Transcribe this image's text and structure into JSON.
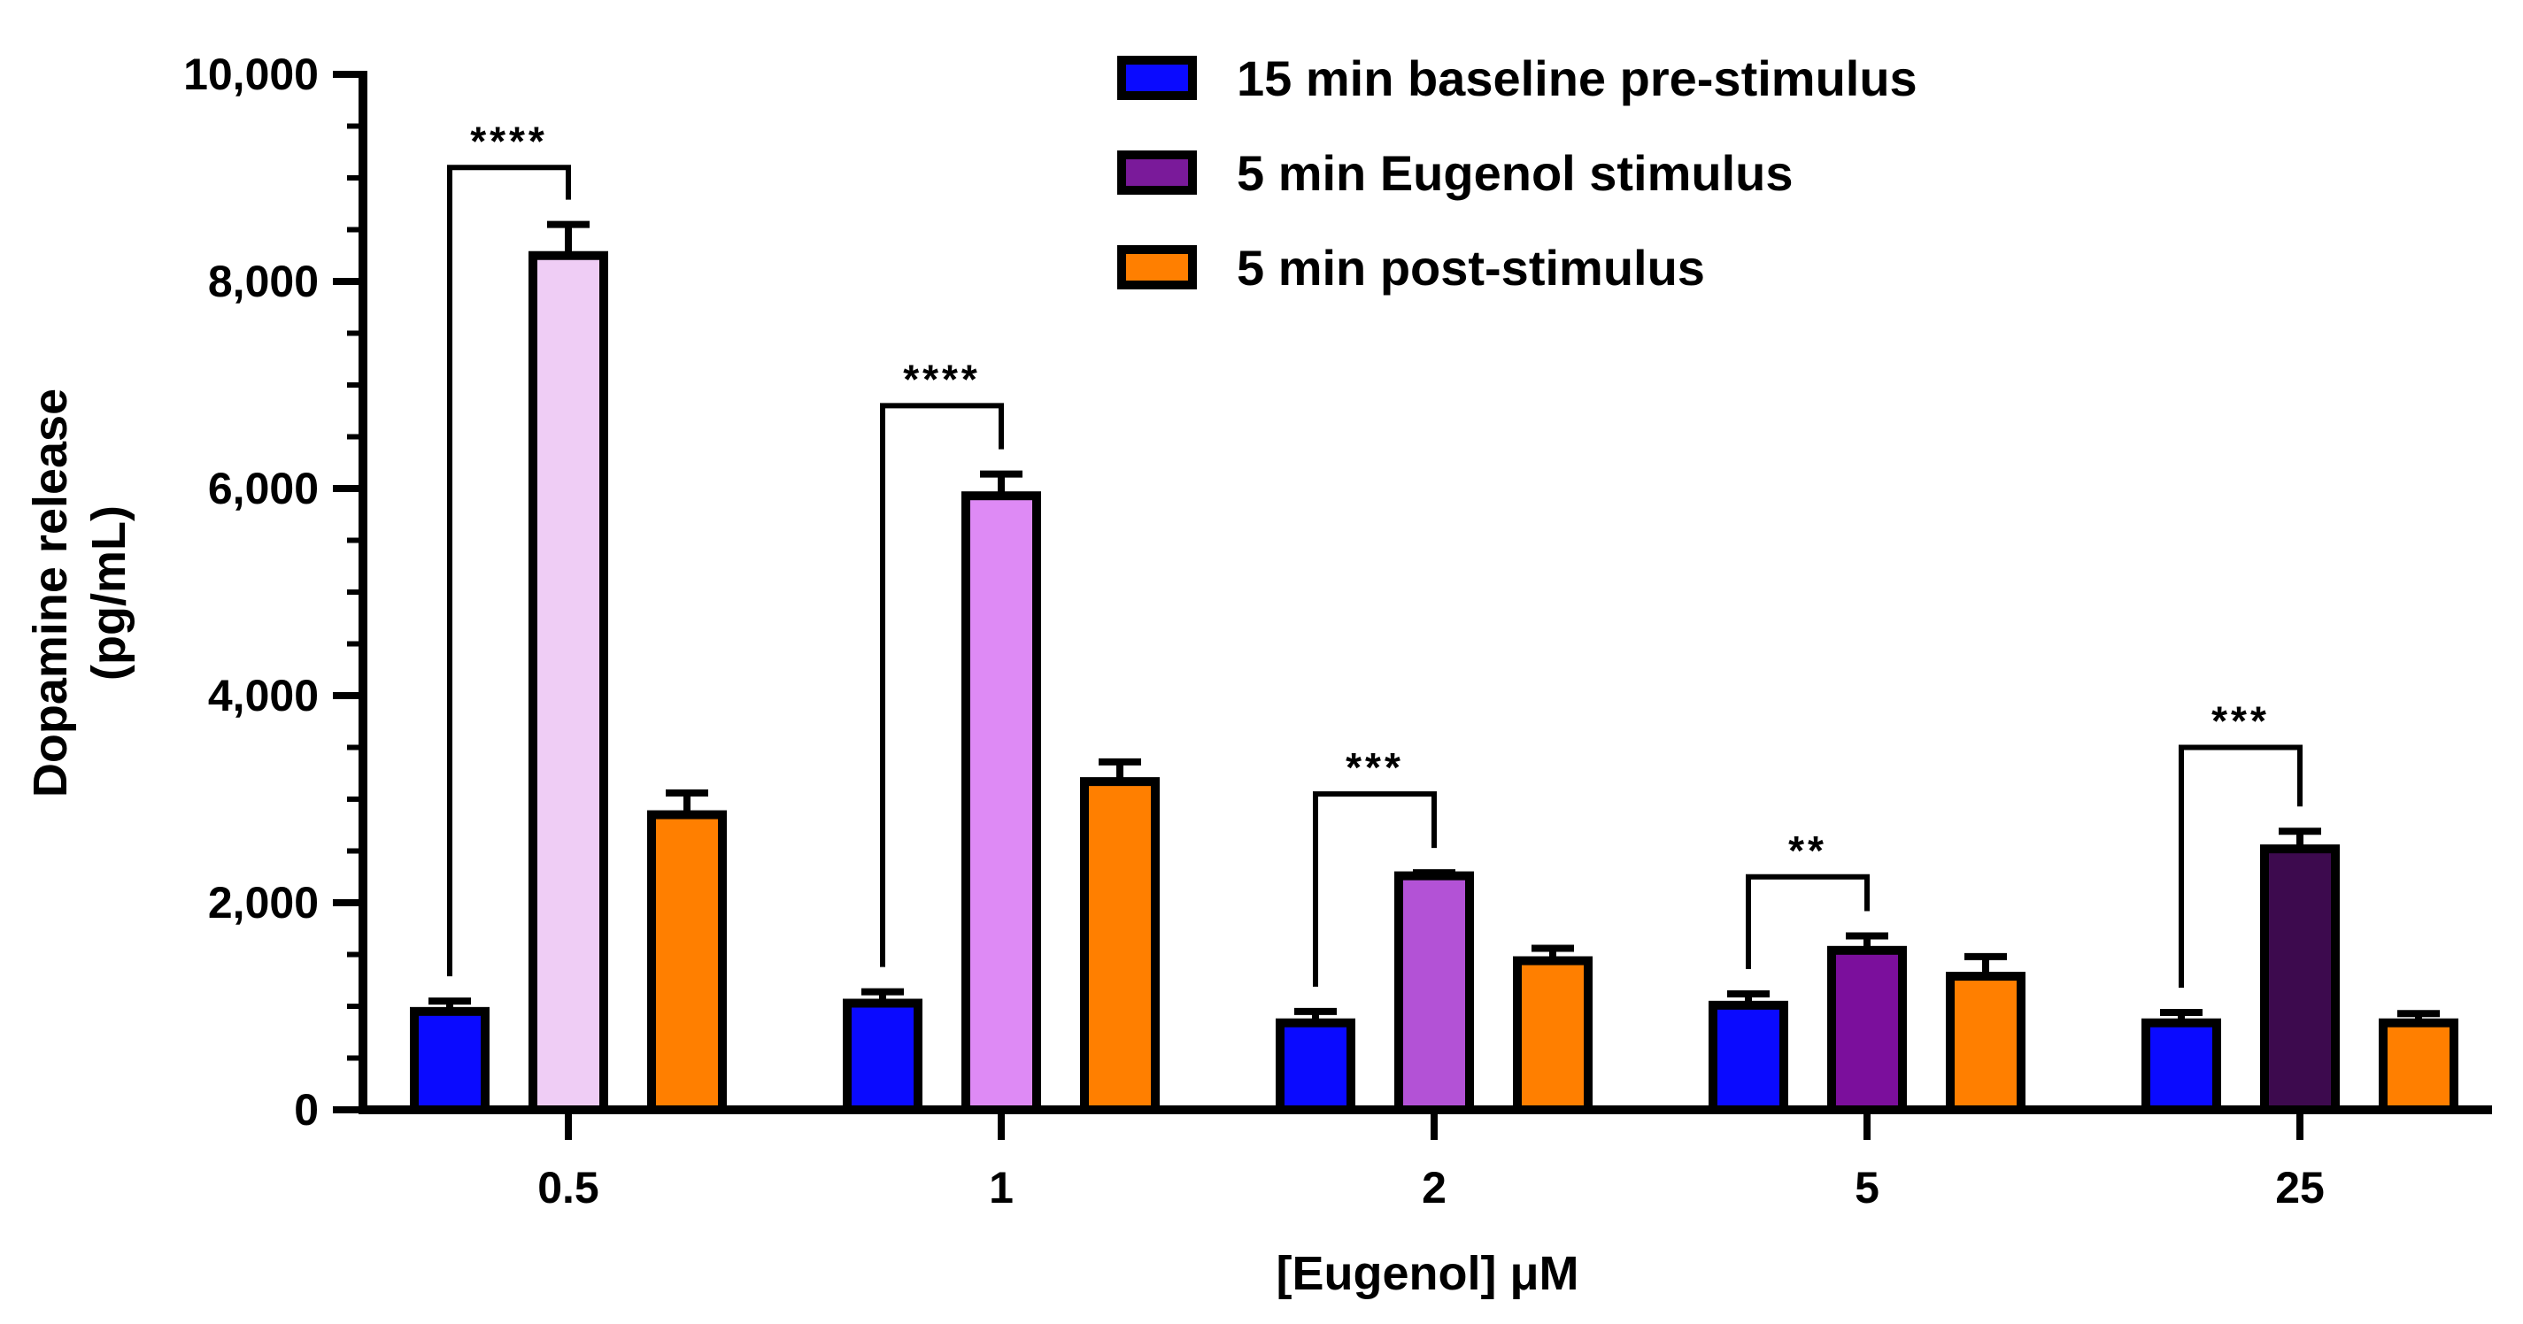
{
  "chart_data": {
    "type": "bar",
    "title": "",
    "xlabel": "[Eugenol] μM",
    "ylabel_lines": [
      "Dopamine release",
      "(pg/mL)"
    ],
    "ylim": [
      0,
      10000
    ],
    "yticks": [
      0,
      2000,
      4000,
      6000,
      8000,
      10000
    ],
    "ytick_labels": [
      "0",
      "2,000",
      "4,000",
      "6,000",
      "8,000",
      "10,000"
    ],
    "categories": [
      "0.5",
      "1",
      "2",
      "5",
      "25"
    ],
    "legend_position": "top-right",
    "series": [
      {
        "name": "15 min baseline pre-stimulus",
        "legend_color": "#0a0aff",
        "values": [
          950,
          1030,
          840,
          1010,
          840
        ],
        "errors": [
          100,
          110,
          110,
          110,
          100
        ],
        "colors": [
          "#0a0aff",
          "#0a0aff",
          "#0a0aff",
          "#0a0aff",
          "#0a0aff"
        ]
      },
      {
        "name": "5 min Eugenol stimulus",
        "legend_color": "#7a1a9a",
        "values": [
          8250,
          5930,
          2260,
          1540,
          2520
        ],
        "errors": [
          300,
          210,
          30,
          140,
          170
        ],
        "colors": [
          "#efcdf5",
          "#de8af5",
          "#b352d6",
          "#7b0f9c",
          "#3d0a4e"
        ]
      },
      {
        "name": "5 min post-stimulus",
        "legend_color": "#ff7f00",
        "values": [
          2850,
          3170,
          1440,
          1290,
          840
        ],
        "errors": [
          210,
          190,
          120,
          190,
          90
        ],
        "colors": [
          "#ff7f00",
          "#ff7f00",
          "#ff7f00",
          "#ff7f00",
          "#ff7f00"
        ]
      }
    ],
    "significance": [
      {
        "category": "0.5",
        "label": "****",
        "bracket_top": 9100
      },
      {
        "category": "1",
        "label": "****",
        "bracket_top": 6800
      },
      {
        "category": "2",
        "label": "***",
        "bracket_top": 3050
      },
      {
        "category": "5",
        "label": "**",
        "bracket_top": 2250
      },
      {
        "category": "25",
        "label": "***",
        "bracket_top": 3500
      }
    ]
  }
}
